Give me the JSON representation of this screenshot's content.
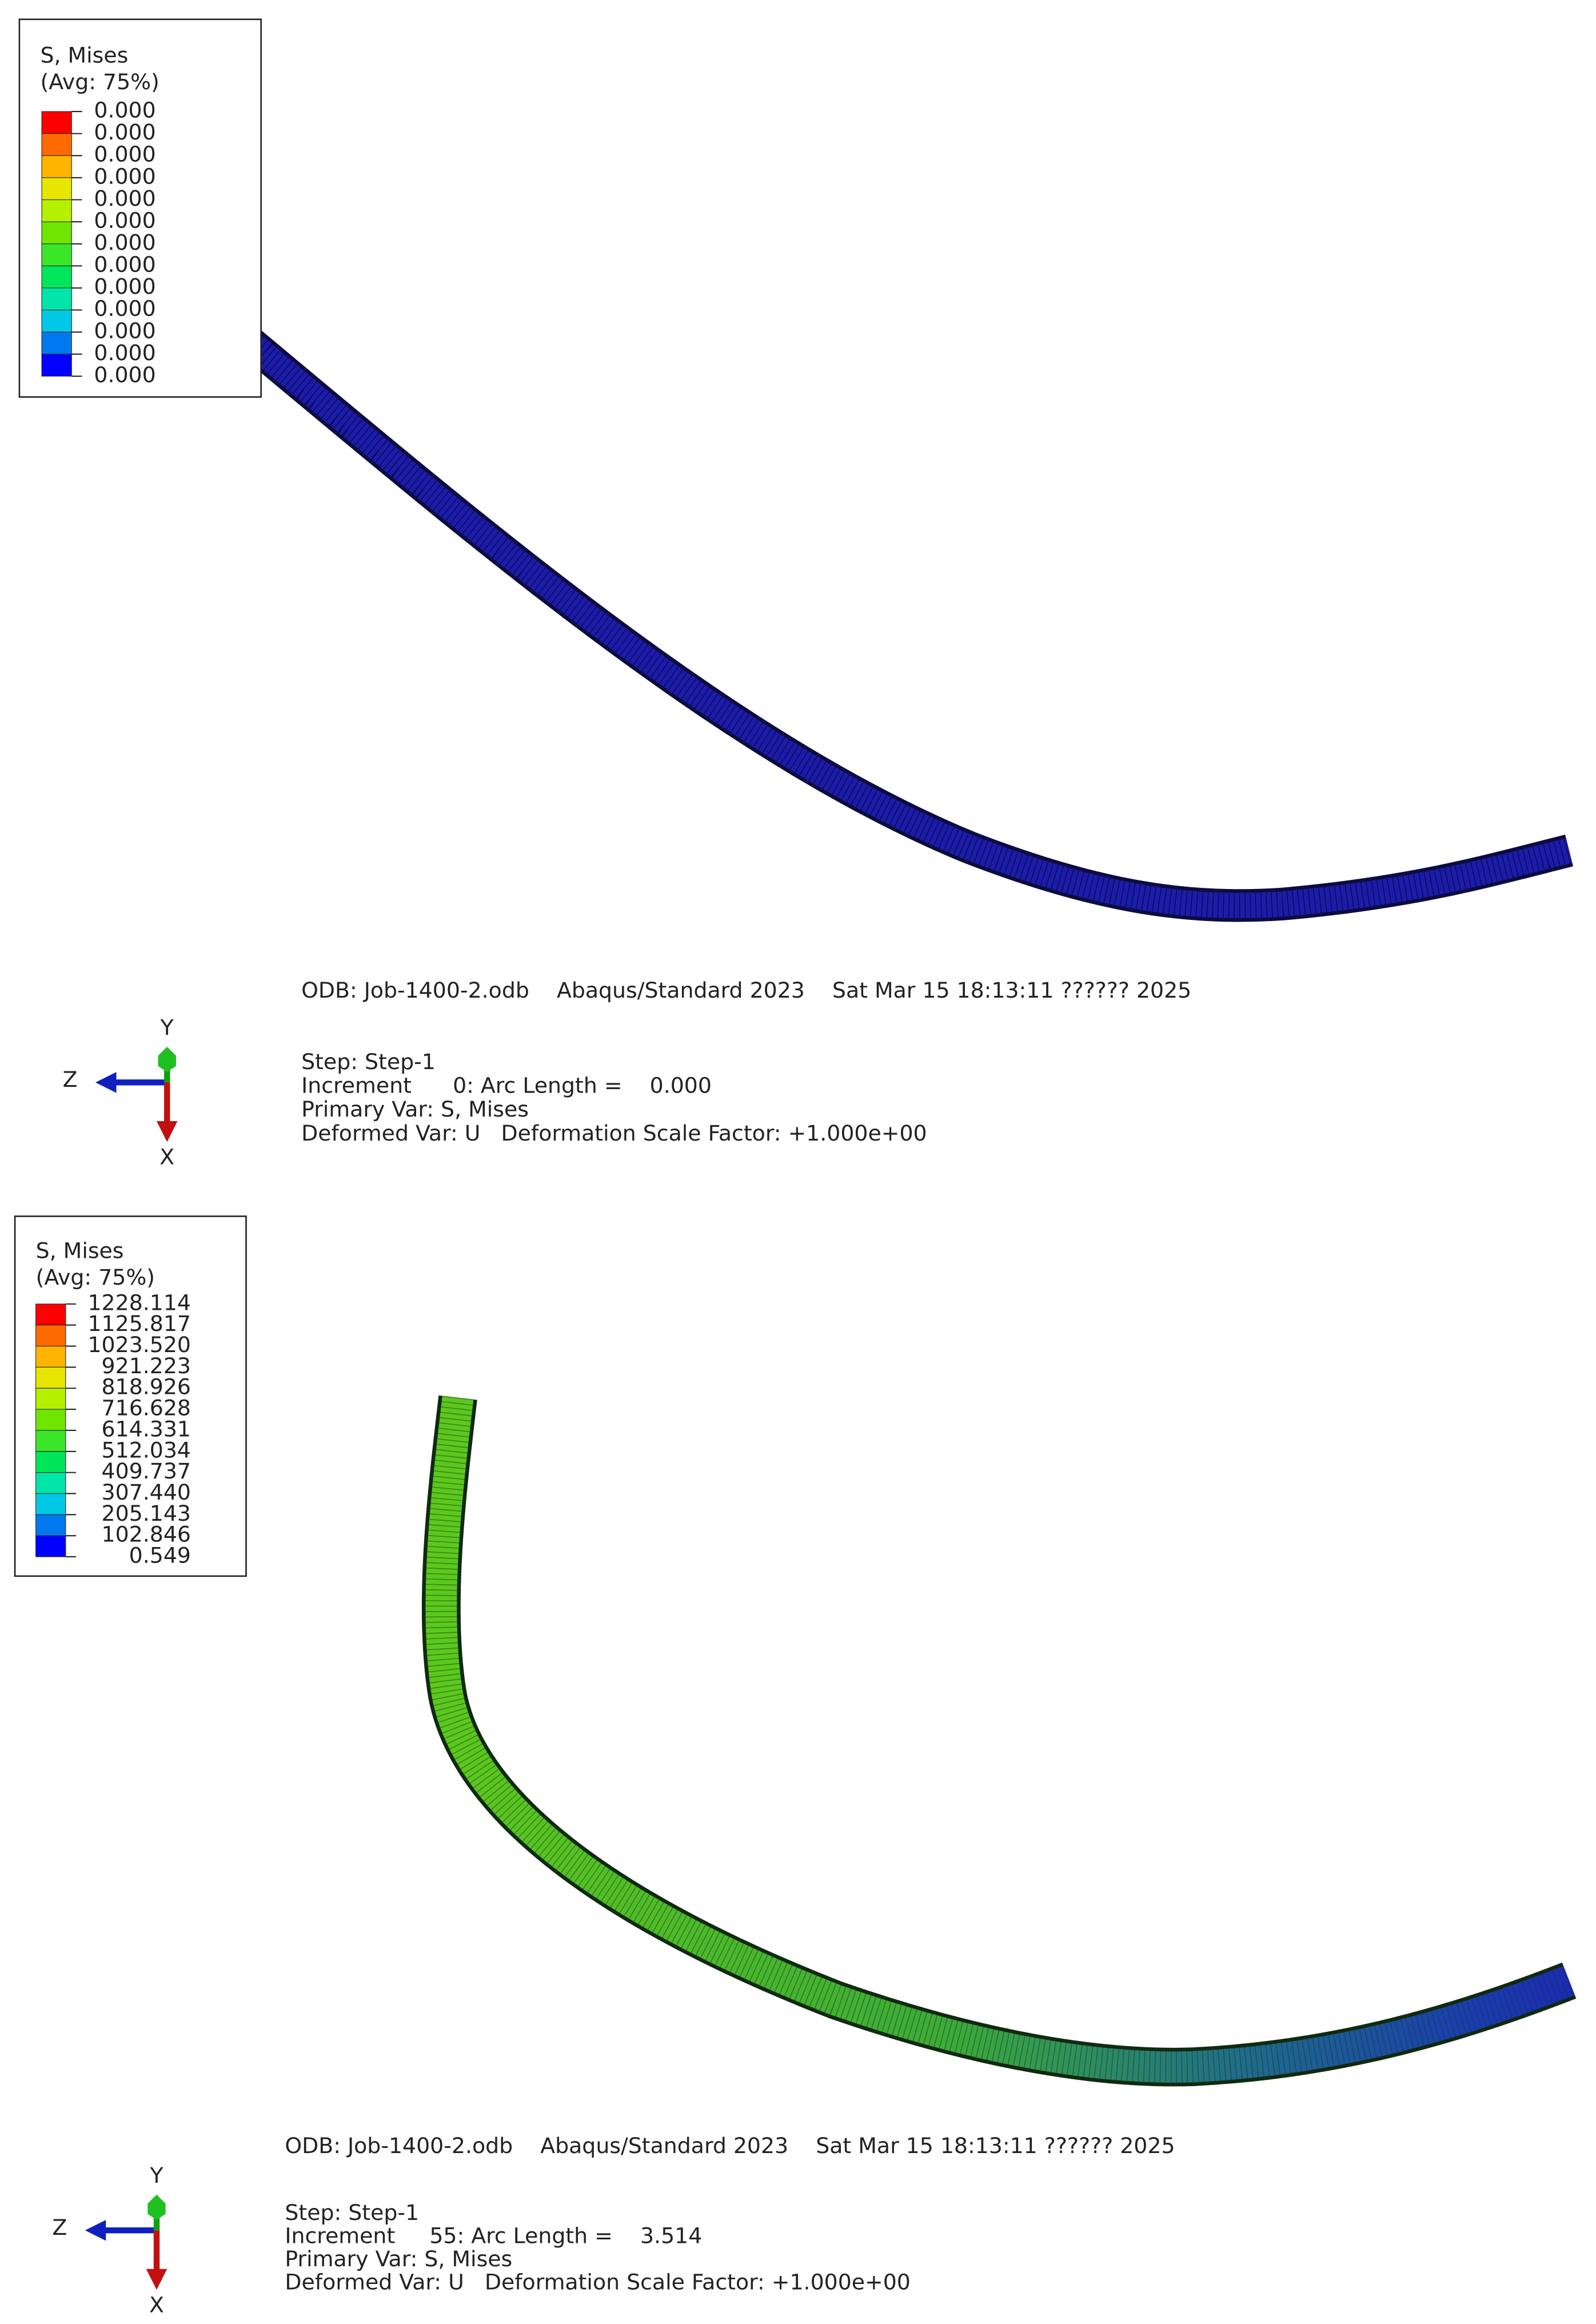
{
  "legend_colors": [
    "#ff0000",
    "#ff6a00",
    "#ffb400",
    "#e6e600",
    "#b4f000",
    "#6ee600",
    "#3ce628",
    "#00e65a",
    "#00e6aa",
    "#00c8e6",
    "#0078f0",
    "#0000ff"
  ],
  "panels": [
    {
      "legend": {
        "title": "S, Mises",
        "subtitle": "(Avg: 75%)",
        "labels": [
          "0.000",
          "0.000",
          "0.000",
          "0.000",
          "0.000",
          "0.000",
          "0.000",
          "0.000",
          "0.000",
          "0.000",
          "0.000",
          "0.000",
          "0.000"
        ]
      },
      "odb": "ODB: Job-1400-2.odb    Abaqus/Standard 2023    Sat Mar 15 18:13:11 ?????? 2025",
      "axes": {
        "y": "Y",
        "z": "Z",
        "x": "X"
      },
      "step": [
        "Step: Step-1",
        "Increment      0: Arc Length =    0.000",
        "Primary Var: S, Mises",
        "Deformed Var: U   Deformation Scale Factor: +1.000e+00"
      ]
    },
    {
      "legend": {
        "title": "S, Mises",
        "subtitle": "(Avg: 75%)",
        "labels": [
          "1228.114",
          "1125.817",
          "1023.520",
          "921.223",
          "818.926",
          "716.628",
          "614.331",
          "512.034",
          "409.737",
          "307.440",
          "205.143",
          "102.846",
          "0.549"
        ]
      },
      "odb": "ODB: Job-1400-2.odb    Abaqus/Standard 2023    Sat Mar 15 18:13:11 ?????? 2025",
      "axes": {
        "y": "Y",
        "z": "Z",
        "x": "X"
      },
      "step": [
        "Step: Step-1",
        "Increment     55: Arc Length =    3.514",
        "Primary Var: S, Mises",
        "Deformed Var: U   Deformation Scale Factor: +1.000e+00"
      ]
    }
  ]
}
